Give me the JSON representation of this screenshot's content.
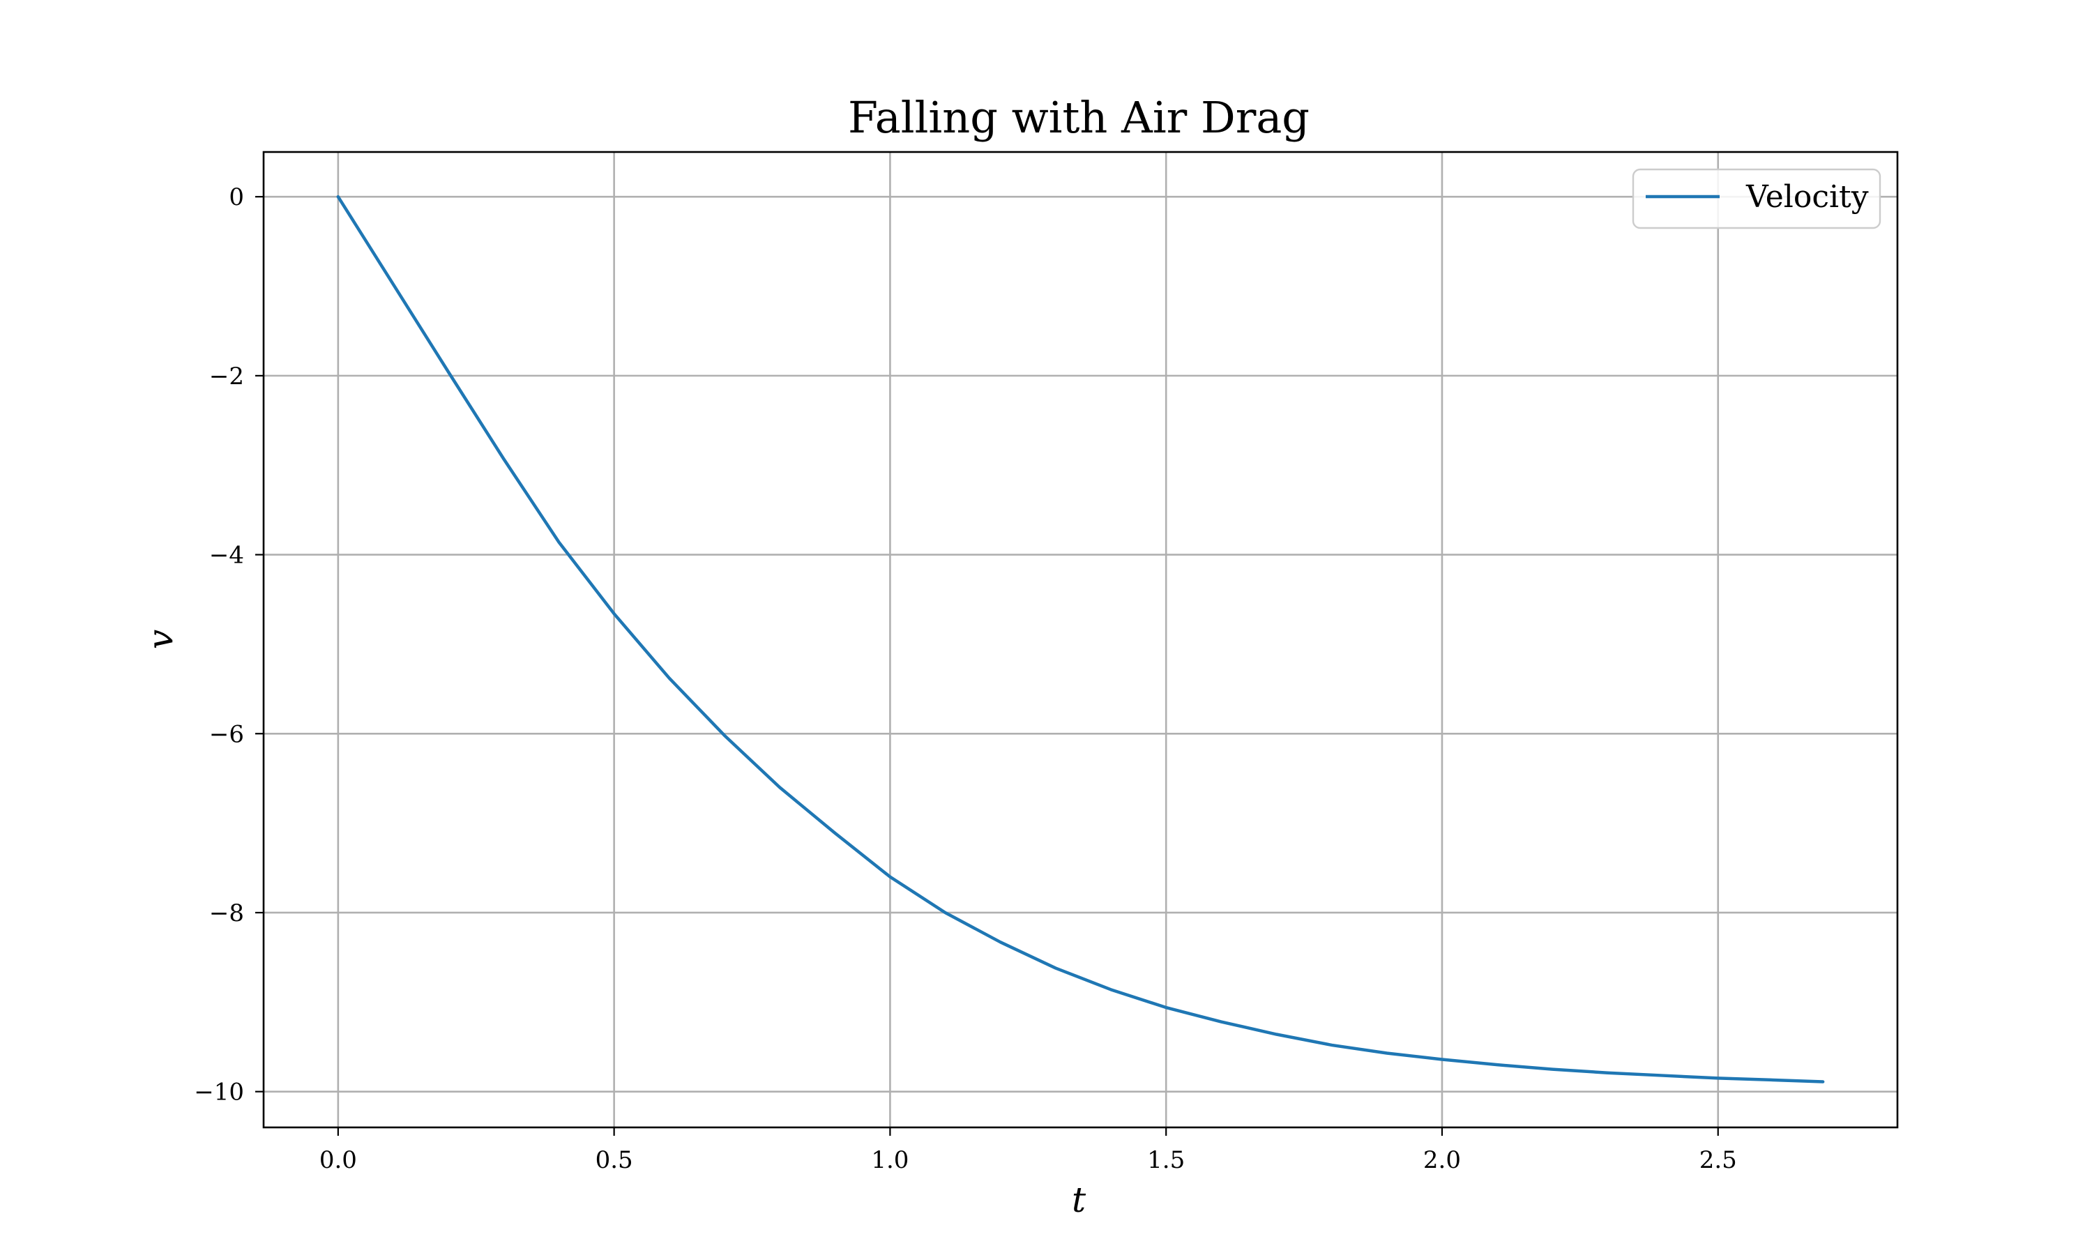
{
  "chart_data": {
    "type": "line",
    "title": "Falling with Air Drag",
    "xlabel": "t",
    "ylabel": "v",
    "xlim": [
      -0.135,
      2.825
    ],
    "ylim": [
      -10.4,
      0.5
    ],
    "xticks": [
      0.0,
      0.5,
      1.0,
      1.5,
      2.0,
      2.5
    ],
    "xtick_labels": [
      "0.0",
      "0.5",
      "1.0",
      "1.5",
      "2.0",
      "2.5"
    ],
    "yticks": [
      0,
      -2,
      -4,
      -6,
      -8,
      -10
    ],
    "ytick_labels": [
      "0",
      "−2",
      "−4",
      "−6",
      "−8",
      "−10"
    ],
    "grid": true,
    "legend_position": "top-right",
    "series": [
      {
        "name": "Velocity",
        "color": "#1f77b4",
        "x": [
          0.0,
          0.1,
          0.2,
          0.3,
          0.4,
          0.5,
          0.6,
          0.7,
          0.8,
          0.9,
          1.0,
          1.1,
          1.2,
          1.3,
          1.4,
          1.5,
          1.6,
          1.7,
          1.8,
          1.9,
          2.0,
          2.1,
          2.2,
          2.3,
          2.4,
          2.5,
          2.6,
          2.69
        ],
        "y": [
          0.0,
          -0.98,
          -1.96,
          -2.93,
          -3.86,
          -4.66,
          -5.38,
          -6.02,
          -6.6,
          -7.11,
          -7.6,
          -8.0,
          -8.33,
          -8.62,
          -8.86,
          -9.06,
          -9.22,
          -9.36,
          -9.48,
          -9.57,
          -9.64,
          -9.7,
          -9.75,
          -9.79,
          -9.82,
          -9.85,
          -9.87,
          -9.89
        ]
      }
    ]
  }
}
